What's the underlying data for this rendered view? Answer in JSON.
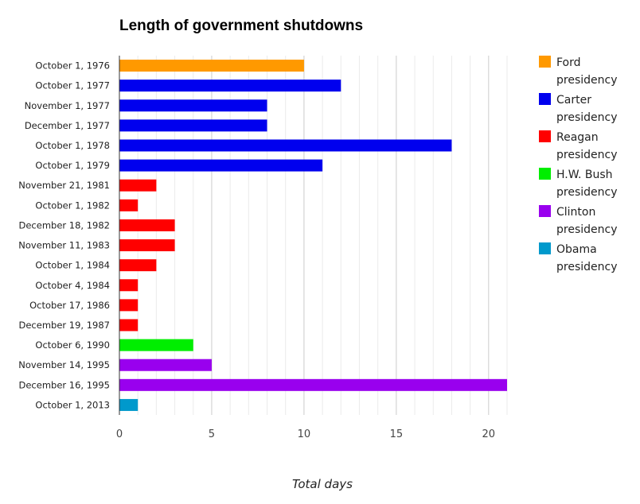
{
  "chart_data": {
    "type": "bar",
    "orientation": "horizontal",
    "title": "Length of government shutdowns",
    "xlabel": "Total days",
    "ylabel": "",
    "xlim": [
      0,
      21
    ],
    "x_ticks": [
      "0",
      "5",
      "10",
      "15",
      "20"
    ],
    "grid": true,
    "legend_position": "right",
    "categories": [
      "October 1, 1976",
      "October 1, 1977",
      "November 1, 1977",
      "December 1, 1977",
      "October 1, 1978",
      "October 1, 1979",
      "November 21, 1981",
      "October 1, 1982",
      "December 18, 1982",
      "November 11, 1983",
      "October 1, 1984",
      "October 4, 1984",
      "October 17, 1986",
      "December 19, 1987",
      "October 6, 1990",
      "November 14, 1995",
      "December 16, 1995",
      "October 1, 2013"
    ],
    "values": [
      10,
      12,
      8,
      8,
      18,
      11,
      2,
      1,
      3,
      3,
      2,
      1,
      1,
      1,
      4,
      5,
      21,
      1
    ],
    "bar_series": [
      "Ford presidency",
      "Carter presidency",
      "Carter presidency",
      "Carter presidency",
      "Carter presidency",
      "Carter presidency",
      "Reagan presidency",
      "Reagan presidency",
      "Reagan presidency",
      "Reagan presidency",
      "Reagan presidency",
      "Reagan presidency",
      "Reagan presidency",
      "Reagan presidency",
      "H.W. Bush presidency",
      "Clinton presidency",
      "Clinton presidency",
      "Obama presidency"
    ],
    "series": [
      {
        "name": "Ford presidency",
        "line1": "Ford",
        "line2": "presidency",
        "color": "#ff9900"
      },
      {
        "name": "Carter presidency",
        "line1": "Carter",
        "line2": "presidency",
        "color": "#0000ee"
      },
      {
        "name": "Reagan presidency",
        "line1": "Reagan",
        "line2": "presidency",
        "color": "#ff0000"
      },
      {
        "name": "H.W. Bush presidency",
        "line1": "H.W. Bush",
        "line2": "presidency",
        "color": "#00ee00"
      },
      {
        "name": "Clinton presidency",
        "line1": "Clinton",
        "line2": "presidency",
        "color": "#9900ee"
      },
      {
        "name": "Obama presidency",
        "line1": "Obama",
        "line2": "presidency",
        "color": "#0099cc"
      }
    ]
  }
}
